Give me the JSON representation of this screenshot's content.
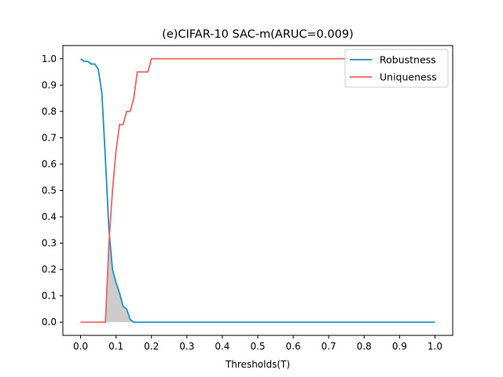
{
  "chart_data": {
    "type": "line",
    "title": "(e)CIFAR-10 SAC-m(ARUC=0.009)",
    "xlabel": "Thresholds(T)",
    "ylabel": "",
    "xlim": [
      -0.05,
      1.05
    ],
    "ylim": [
      -0.05,
      1.05
    ],
    "xticks": [
      0.0,
      0.1,
      0.2,
      0.3,
      0.4,
      0.5,
      0.6,
      0.7,
      0.8,
      0.9,
      1.0
    ],
    "xtick_labels": [
      "0.0",
      "0.1",
      "0.2",
      "0.3",
      "0.4",
      "0.5",
      "0.6",
      "0.7",
      "0.8",
      "0.9",
      "1.0"
    ],
    "yticks": [
      0.0,
      0.1,
      0.2,
      0.3,
      0.4,
      0.5,
      0.6,
      0.7,
      0.8,
      0.9,
      1.0
    ],
    "ytick_labels": [
      "0.0",
      "0.1",
      "0.2",
      "0.3",
      "0.4",
      "0.5",
      "0.6",
      "0.7",
      "0.8",
      "0.9",
      "1.0"
    ],
    "grid": false,
    "legend_position": "top-right",
    "overlap_fill_color": "#cccccc",
    "series": [
      {
        "name": "Robustness",
        "color": "#1f8fc9",
        "x": [
          0.0,
          0.01,
          0.02,
          0.03,
          0.04,
          0.05,
          0.06,
          0.07,
          0.08,
          0.09,
          0.1,
          0.11,
          0.12,
          0.13,
          0.14,
          0.15,
          0.16,
          0.2,
          0.5,
          1.0
        ],
        "y": [
          1.0,
          0.99,
          0.99,
          0.98,
          0.98,
          0.96,
          0.87,
          0.62,
          0.35,
          0.2,
          0.15,
          0.11,
          0.06,
          0.05,
          0.01,
          0.0,
          0.0,
          0.0,
          0.0,
          0.0
        ]
      },
      {
        "name": "Uniqueness",
        "color": "#f06464",
        "x": [
          0.0,
          0.03,
          0.06,
          0.07,
          0.08,
          0.09,
          0.1,
          0.11,
          0.12,
          0.13,
          0.14,
          0.15,
          0.16,
          0.17,
          0.18,
          0.19,
          0.2,
          0.5,
          1.0
        ],
        "y": [
          0.0,
          0.0,
          0.0,
          0.0,
          0.3,
          0.5,
          0.65,
          0.75,
          0.75,
          0.8,
          0.8,
          0.85,
          0.95,
          0.95,
          0.95,
          0.95,
          1.0,
          1.0,
          1.0
        ]
      }
    ]
  }
}
